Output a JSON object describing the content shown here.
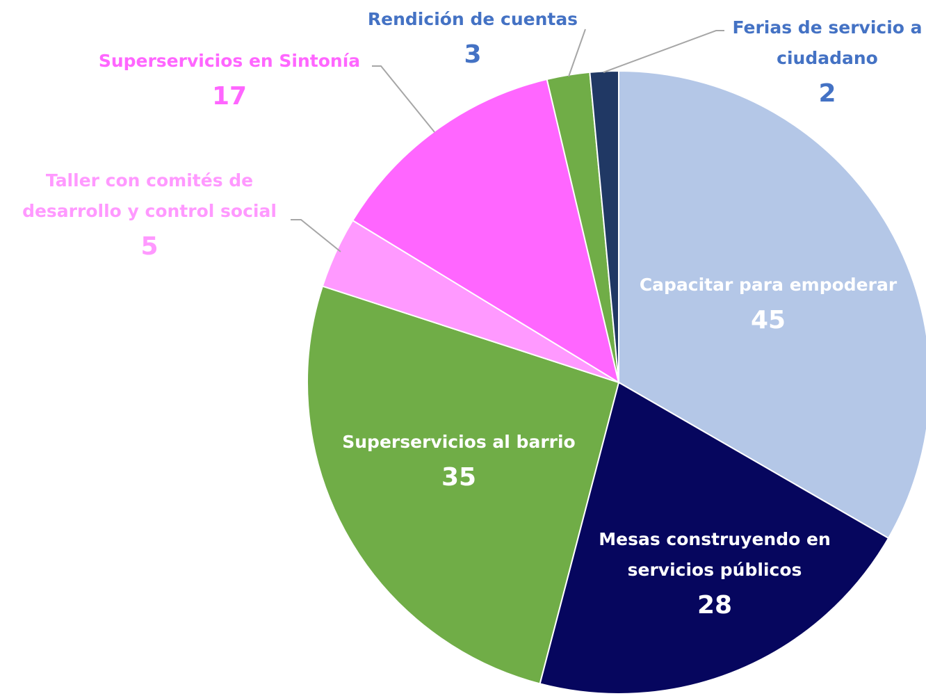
{
  "chart_data": {
    "type": "pie",
    "categories": [
      "Capacitar para empoderar",
      "Mesas construyendo en servicios públicos",
      "Superservicios al barrio",
      "Taller con comités de desarrollo y control social",
      "Superservicios en Sintonía",
      "Rendición de cuentas",
      "Ferias de servicio a ciudadano"
    ],
    "values": [
      45,
      28,
      35,
      5,
      17,
      3,
      2
    ],
    "colors": [
      "#b4c7e7",
      "#06065e",
      "#70ad47",
      "#ff99ff",
      "#ff66ff",
      "#70ad47",
      "#203864"
    ],
    "label_colors": [
      "#ffffff",
      "#ffffff",
      "#ffffff",
      "#ff99ff",
      "#ff66ff",
      "#4472c4",
      "#4472c4"
    ]
  }
}
